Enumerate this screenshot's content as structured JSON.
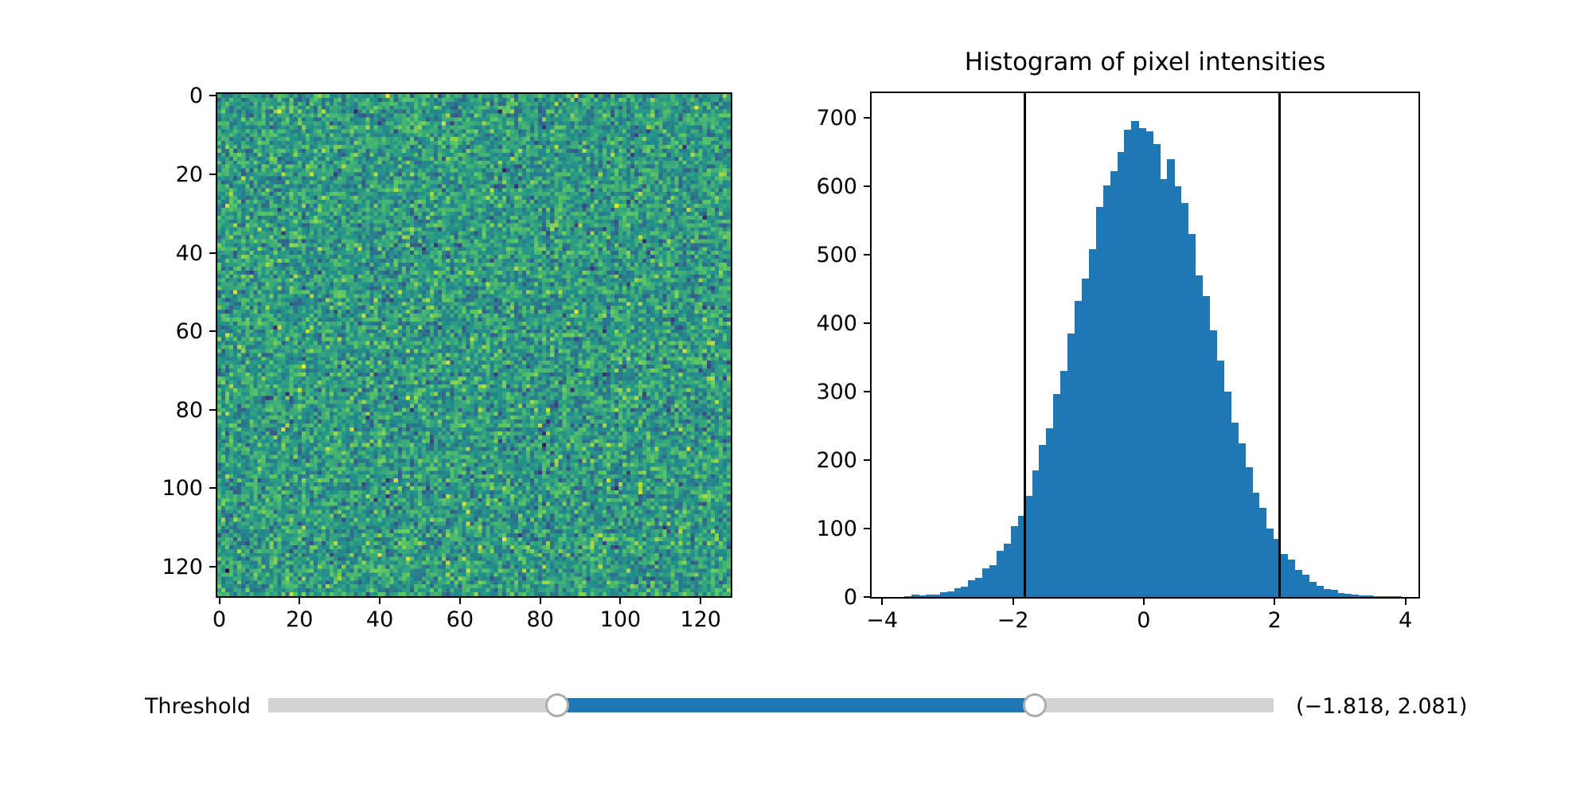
{
  "figure": {
    "background": "#ffffff",
    "accent_color": "#1f77b4"
  },
  "image_panel": {
    "description": "noisy-image",
    "size": 128,
    "colormap": "viridis",
    "colormap_stops": [
      [
        0,
        "#440154"
      ],
      [
        0.25,
        "#3b528b"
      ],
      [
        0.5,
        "#21918c"
      ],
      [
        0.75,
        "#5ec962"
      ],
      [
        1,
        "#fde725"
      ]
    ],
    "xticks": [
      0,
      20,
      40,
      60,
      80,
      100,
      120
    ],
    "xtick_labels": [
      "0",
      "20",
      "40",
      "60",
      "80",
      "100",
      "120"
    ],
    "yticks": [
      0,
      20,
      40,
      60,
      80,
      100,
      120
    ],
    "ytick_labels": [
      "0",
      "20",
      "40",
      "60",
      "80",
      "100",
      "120"
    ]
  },
  "chart_data": {
    "type": "bar",
    "title": "Histogram of pixel intensities",
    "xlabel": "",
    "ylabel": "",
    "xlim": [
      -4.16,
      4.2
    ],
    "ylim": [
      0,
      736
    ],
    "grid": false,
    "legend": null,
    "bar_color": "#1f77b4",
    "xticks": [
      -4,
      -2,
      0,
      2,
      4
    ],
    "xtick_labels": [
      "−4",
      "−2",
      "0",
      "2",
      "4"
    ],
    "yticks": [
      0,
      100,
      200,
      300,
      400,
      500,
      600,
      700
    ],
    "ytick_labels": [
      "0",
      "100",
      "200",
      "300",
      "400",
      "500",
      "600",
      "700"
    ],
    "bin_start": -3.66,
    "bin_width": 0.1085,
    "counts": [
      1,
      3,
      2,
      4,
      4,
      7,
      8,
      13,
      15,
      24,
      28,
      42,
      47,
      67,
      78,
      104,
      119,
      148,
      185,
      222,
      247,
      296,
      330,
      385,
      432,
      465,
      508,
      570,
      601,
      622,
      650,
      683,
      695,
      685,
      680,
      662,
      610,
      640,
      600,
      575,
      530,
      470,
      440,
      390,
      345,
      300,
      255,
      225,
      190,
      152,
      130,
      100,
      85,
      63,
      55,
      40,
      33,
      22,
      16,
      12,
      11,
      6,
      5,
      3,
      2,
      2,
      1,
      1,
      1,
      1
    ],
    "threshold_lines": [
      -1.818,
      2.081
    ],
    "threshold_line_color": "#000000"
  },
  "slider": {
    "label": "Threshold",
    "value": [
      -1.818,
      2.081
    ],
    "value_text": "(−1.818, 2.081)",
    "min": -4.18,
    "max": 4.03,
    "track_color": "#d3d3d3",
    "active_color": "#1f77b4",
    "handle_fill": "#ffffff",
    "handle_border": "#adadad"
  }
}
